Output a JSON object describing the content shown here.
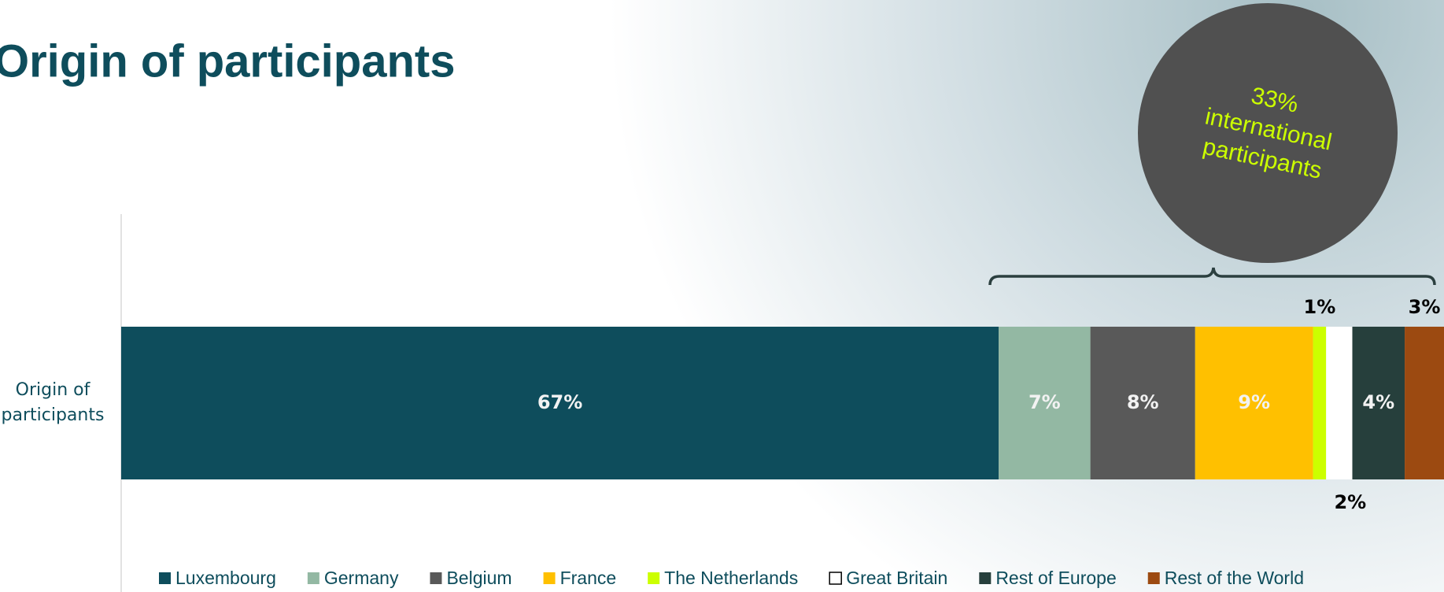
{
  "chart_data": {
    "type": "stacked-bar",
    "orientation": "horizontal",
    "title": "Origin of participants",
    "categories": [
      "Origin of participants"
    ],
    "xlim": [
      0,
      101
    ],
    "series": [
      {
        "name": "Luxembourg",
        "color": "#0e4d5c",
        "values": [
          67
        ],
        "value_labels": [
          "67%"
        ]
      },
      {
        "name": "Germany",
        "color": "#93b8a3",
        "values": [
          7
        ],
        "value_labels": [
          "7%"
        ]
      },
      {
        "name": "Belgium",
        "color": "#595959",
        "values": [
          8
        ],
        "value_labels": [
          "8%"
        ]
      },
      {
        "name": "France",
        "color": "#ffc000",
        "values": [
          9
        ],
        "value_labels": [
          "9%"
        ]
      },
      {
        "name": "The Netherlands",
        "color": "#ccff00",
        "values": [
          1
        ],
        "value_labels": [
          "1%"
        ]
      },
      {
        "name": "Great Britain",
        "color": "#ffffff",
        "values": [
          2
        ],
        "value_labels": [
          "2%"
        ]
      },
      {
        "name": "Rest of Europe",
        "color": "#263f3c",
        "values": [
          4
        ],
        "value_labels": [
          "4%"
        ]
      },
      {
        "name": "Rest of the World",
        "color": "#9c4a11",
        "values": [
          3
        ],
        "value_labels": [
          "3%"
        ]
      }
    ],
    "annotation": {
      "lines": [
        "33%",
        "international",
        "participants"
      ],
      "color": "#ccff00",
      "background": "#505050"
    },
    "legend": "bottom"
  }
}
